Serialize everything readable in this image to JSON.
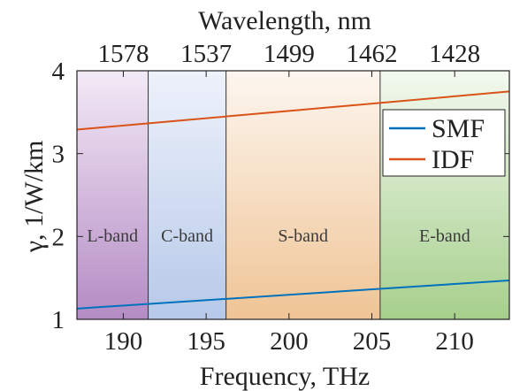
{
  "chart_data": {
    "type": "line",
    "xlabel": "Frequency, THz",
    "x2label": "Wavelength, nm",
    "ylabel": "γ, 1/W/km",
    "xlim": [
      187.2,
      213.3
    ],
    "ylim": [
      1,
      4
    ],
    "xticks": [
      190,
      195,
      200,
      205,
      210
    ],
    "yticks": [
      1,
      2,
      3,
      4
    ],
    "x2ticks": [
      {
        "freq": 190,
        "label": "1578"
      },
      {
        "freq": 195,
        "label": "1537"
      },
      {
        "freq": 200,
        "label": "1499"
      },
      {
        "freq": 205,
        "label": "1462"
      },
      {
        "freq": 210,
        "label": "1428"
      }
    ],
    "bands": [
      {
        "label": "L-band",
        "from": 187.2,
        "to": 191.5,
        "color_top": "#f3eaf6",
        "color_bottom": "#b48bc4"
      },
      {
        "label": "C-band",
        "from": 191.5,
        "to": 196.2,
        "color_top": "#eef2fb",
        "color_bottom": "#b6c9e9"
      },
      {
        "label": "S-band",
        "from": 196.2,
        "to": 205.5,
        "color_top": "#fdf6ef",
        "color_bottom": "#efc495"
      },
      {
        "label": "E-band",
        "from": 205.5,
        "to": 213.3,
        "color_top": "#f3f9ef",
        "color_bottom": "#a6cf8c"
      }
    ],
    "series": [
      {
        "name": "SMF",
        "color": "#0072bd",
        "x": [
          187.2,
          213.3
        ],
        "values": [
          1.13,
          1.47
        ]
      },
      {
        "name": "IDF",
        "color": "#d95319",
        "x": [
          187.2,
          213.3
        ],
        "values": [
          3.29,
          3.75
        ]
      }
    ],
    "legend_position": "right"
  }
}
